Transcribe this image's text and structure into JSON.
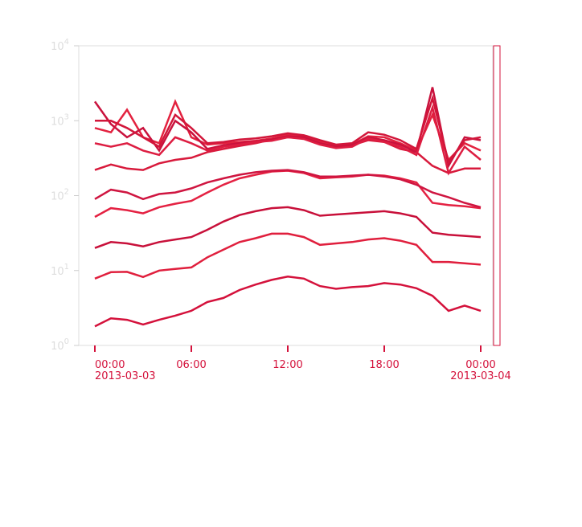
{
  "chart_data": {
    "type": "line",
    "x": [
      "2013-03-03 00:00",
      "2013-03-03 01:00",
      "2013-03-03 02:00",
      "2013-03-03 03:00",
      "2013-03-03 04:00",
      "2013-03-03 05:00",
      "2013-03-03 06:00",
      "2013-03-03 07:00",
      "2013-03-03 08:00",
      "2013-03-03 09:00",
      "2013-03-03 10:00",
      "2013-03-03 11:00",
      "2013-03-03 12:00",
      "2013-03-03 13:00",
      "2013-03-03 14:00",
      "2013-03-03 15:00",
      "2013-03-03 16:00",
      "2013-03-03 17:00",
      "2013-03-03 18:00",
      "2013-03-03 19:00",
      "2013-03-03 20:00",
      "2013-03-03 21:00",
      "2013-03-03 22:00",
      "2013-03-03 23:00",
      "2013-03-04 00:00"
    ],
    "xlim": [
      "2013-03-02 23:00",
      "2013-03-04 00:45"
    ],
    "xticks": [
      {
        "value": "2013-03-03 00:00",
        "label": "00:00",
        "date": "2013-03-03"
      },
      {
        "value": "2013-03-03 06:00",
        "label": "06:00"
      },
      {
        "value": "2013-03-03 12:00",
        "label": "12:00"
      },
      {
        "value": "2013-03-03 18:00",
        "label": "18:00"
      },
      {
        "value": "2013-03-04 00:00",
        "label": "00:00",
        "date": "2013-03-04"
      }
    ],
    "ylim": [
      1,
      10000
    ],
    "log_y": true,
    "yticks": [
      {
        "value": 1,
        "label": "10",
        "exponent": "0"
      },
      {
        "value": 10,
        "label": "10",
        "exponent": "1"
      },
      {
        "value": 100,
        "label": "10",
        "exponent": "2"
      },
      {
        "value": 1000,
        "label": "10",
        "exponent": "3"
      },
      {
        "value": 10000,
        "label": "10",
        "exponent": "4"
      }
    ],
    "series": [
      {
        "color": "#d4113b",
        "values": [
          1.8,
          2.3,
          2.2,
          1.9,
          2.2,
          2.5,
          2.9,
          3.8,
          4.3,
          5.5,
          6.5,
          7.5,
          8.3,
          7.8,
          6.2,
          5.7,
          6.0,
          6.2,
          6.8,
          6.5,
          5.8,
          4.6,
          2.9,
          3.4,
          2.9
        ]
      },
      {
        "color": "#e01f3d",
        "values": [
          7.8,
          9.5,
          9.6,
          8.2,
          10,
          10.5,
          11,
          15,
          19,
          24,
          27,
          31,
          31,
          28,
          22,
          23,
          24,
          26,
          27,
          25,
          22,
          13,
          13,
          12.5,
          12
        ]
      },
      {
        "color": "#c8103a",
        "values": [
          20,
          24,
          23,
          21,
          24,
          26,
          28,
          35,
          45,
          55,
          62,
          68,
          70,
          64,
          54,
          56,
          58,
          60,
          62,
          58,
          52,
          32,
          30,
          29,
          28
        ]
      },
      {
        "color": "#e42142",
        "values": [
          52,
          68,
          64,
          58,
          70,
          78,
          85,
          110,
          140,
          170,
          190,
          210,
          215,
          200,
          170,
          175,
          180,
          190,
          185,
          170,
          150,
          80,
          75,
          72,
          68
        ]
      },
      {
        "color": "#cf1540",
        "values": [
          90,
          120,
          110,
          90,
          105,
          110,
          125,
          150,
          170,
          190,
          205,
          215,
          220,
          205,
          180,
          180,
          185,
          190,
          180,
          165,
          140,
          110,
          95,
          80,
          70
        ]
      },
      {
        "color": "#d81a3c",
        "values": [
          220,
          260,
          230,
          220,
          270,
          300,
          320,
          380,
          420,
          460,
          500,
          560,
          600,
          580,
          500,
          450,
          470,
          550,
          520,
          420,
          380,
          250,
          200,
          230,
          230
        ]
      },
      {
        "color": "#e3223f",
        "values": [
          800,
          700,
          1400,
          600,
          500,
          1800,
          600,
          480,
          500,
          520,
          540,
          580,
          650,
          620,
          520,
          470,
          480,
          620,
          600,
          500,
          400,
          1200,
          300,
          500,
          400
        ]
      },
      {
        "color": "#c9123d",
        "values": [
          1800,
          900,
          600,
          800,
          400,
          1000,
          700,
          420,
          470,
          500,
          530,
          560,
          620,
          600,
          500,
          450,
          470,
          600,
          550,
          480,
          380,
          2800,
          250,
          600,
          550
        ]
      },
      {
        "color": "#dd1d41",
        "values": [
          500,
          450,
          500,
          400,
          350,
          600,
          500,
          400,
          450,
          480,
          520,
          540,
          600,
          570,
          480,
          430,
          450,
          580,
          520,
          450,
          350,
          1500,
          200,
          450,
          300
        ]
      },
      {
        "color": "#d2163a",
        "values": [
          1000,
          1000,
          800,
          600,
          450,
          1200,
          800,
          500,
          520,
          560,
          580,
          620,
          680,
          640,
          550,
          480,
          500,
          700,
          650,
          550,
          420,
          2000,
          280,
          550,
          600
        ]
      }
    ]
  }
}
